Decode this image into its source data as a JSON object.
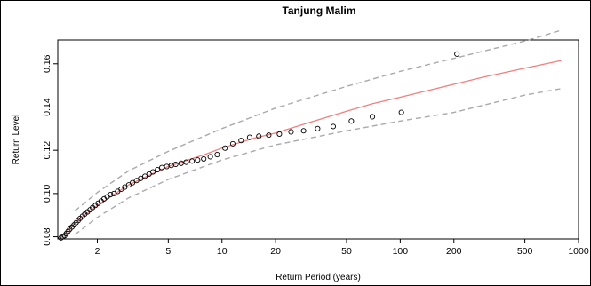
{
  "chart_data": {
    "type": "line",
    "title": "Tanjung Malim",
    "xlabel": "Return Period (years)",
    "ylabel": "Return Level",
    "x_scale": "log",
    "xlim": [
      1.2,
      1000
    ],
    "ylim": [
      0.079,
      0.171
    ],
    "x_ticks": [
      2,
      5,
      10,
      20,
      50,
      100,
      200,
      500,
      1000
    ],
    "x_tick_labels": [
      "2",
      "5",
      "10",
      "20",
      "50",
      "100",
      "200",
      "500",
      "1000"
    ],
    "y_ticks": [
      0.08,
      0.1,
      0.12,
      0.14,
      0.16
    ],
    "y_tick_labels": [
      "0.08",
      "0.10",
      "0.12",
      "0.14",
      "0.16"
    ],
    "series": [
      {
        "role": "fit",
        "style": "solid",
        "color": "#f08080",
        "x": [
          1.25,
          1.5,
          2,
          3,
          5,
          8,
          10,
          15,
          20,
          30,
          50,
          70,
          100,
          200,
          300,
          500,
          800
        ],
        "y": [
          0.0795,
          0.0865,
          0.0945,
          0.104,
          0.1125,
          0.118,
          0.121,
          0.1255,
          0.128,
          0.1325,
          0.138,
          0.1415,
          0.1445,
          0.1505,
          0.154,
          0.158,
          0.1615
        ]
      },
      {
        "role": "upper-ci",
        "style": "dashed",
        "color": "#aaaaaa",
        "x": [
          1.5,
          2,
          3,
          5,
          10,
          20,
          50,
          100,
          200,
          500,
          800
        ],
        "y": [
          0.092,
          0.1005,
          0.1105,
          0.1195,
          0.13,
          0.1395,
          0.1495,
          0.1565,
          0.1625,
          0.1705,
          0.1755
        ]
      },
      {
        "role": "lower-ci",
        "style": "dashed",
        "color": "#aaaaaa",
        "x": [
          1.5,
          2,
          3,
          5,
          10,
          20,
          50,
          100,
          200,
          500,
          800
        ],
        "y": [
          0.081,
          0.089,
          0.098,
          0.1065,
          0.1155,
          0.1225,
          0.129,
          0.1335,
          0.1375,
          0.1455,
          0.1485
        ]
      },
      {
        "role": "empirical",
        "style": "points",
        "color": "#000000",
        "x": [
          1.25,
          1.28,
          1.31,
          1.34,
          1.37,
          1.4,
          1.44,
          1.48,
          1.52,
          1.56,
          1.6,
          1.65,
          1.7,
          1.76,
          1.82,
          1.88,
          1.95,
          2.02,
          2.1,
          2.18,
          2.27,
          2.37,
          2.48,
          2.6,
          2.72,
          2.85,
          3.0,
          3.15,
          3.32,
          3.5,
          3.7,
          3.9,
          4.1,
          4.35,
          4.6,
          4.9,
          5.2,
          5.5,
          5.9,
          6.3,
          6.8,
          7.3,
          7.9,
          8.6,
          9.4,
          10.4,
          11.5,
          12.8,
          14.3,
          16.1,
          18.3,
          21.0,
          24.4,
          28.7,
          34.4,
          42.1,
          53.2,
          69.8,
          101.5,
          208
        ],
        "y": [
          0.0795,
          0.08,
          0.0805,
          0.0815,
          0.0825,
          0.0835,
          0.0845,
          0.0855,
          0.0865,
          0.0875,
          0.0885,
          0.0895,
          0.0905,
          0.0915,
          0.0925,
          0.0935,
          0.0945,
          0.0955,
          0.0965,
          0.0975,
          0.0985,
          0.0995,
          0.1,
          0.101,
          0.102,
          0.103,
          0.104,
          0.105,
          0.106,
          0.107,
          0.108,
          0.109,
          0.11,
          0.111,
          0.112,
          0.1125,
          0.113,
          0.1135,
          0.114,
          0.1145,
          0.115,
          0.1155,
          0.116,
          0.117,
          0.118,
          0.121,
          0.123,
          0.1245,
          0.126,
          0.1265,
          0.127,
          0.1275,
          0.1285,
          0.129,
          0.13,
          0.131,
          0.1335,
          0.1355,
          0.1375,
          0.1645
        ]
      }
    ]
  }
}
